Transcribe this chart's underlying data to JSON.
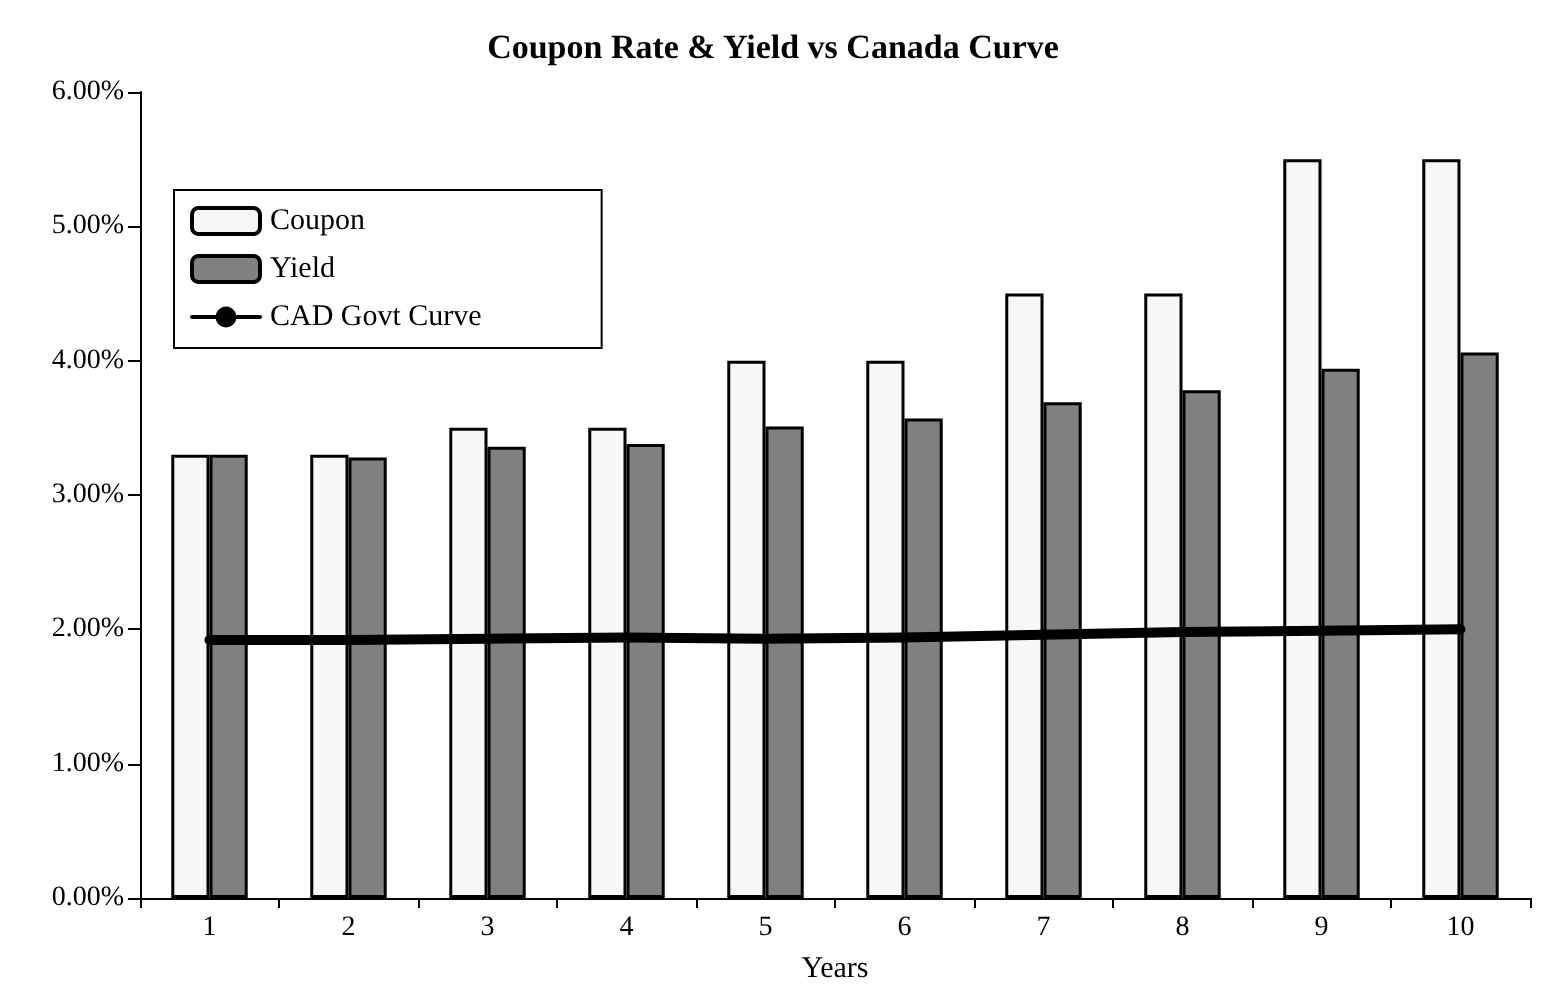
{
  "chart_data": {
    "type": "bar",
    "title": "Coupon Rate & Yield vs Canada Curve",
    "xlabel": "Years",
    "categories": [
      "1",
      "2",
      "3",
      "4",
      "5",
      "6",
      "7",
      "8",
      "9",
      "10"
    ],
    "series": [
      {
        "name": "Coupon",
        "color": "#f7f7f7",
        "values": [
          3.3,
          3.3,
          3.5,
          3.5,
          4.0,
          4.0,
          4.5,
          4.5,
          5.5,
          5.5
        ]
      },
      {
        "name": "Yield",
        "color": "#808080",
        "values": [
          3.3,
          3.28,
          3.36,
          3.38,
          3.51,
          3.57,
          3.69,
          3.78,
          3.94,
          4.06
        ]
      },
      {
        "name": "CAD Govt Curve",
        "type": "line",
        "color": "#000000",
        "values": [
          1.92,
          1.92,
          1.93,
          1.94,
          1.93,
          1.94,
          1.96,
          1.98,
          1.99,
          2.0
        ]
      }
    ],
    "ylim": [
      0,
      6
    ],
    "yticks": [
      {
        "value": 0,
        "label": "0.00%"
      },
      {
        "value": 1,
        "label": "1.00%"
      },
      {
        "value": 2,
        "label": "2.00%"
      },
      {
        "value": 3,
        "label": "3.00%"
      },
      {
        "value": 4,
        "label": "4.00%"
      },
      {
        "value": 5,
        "label": "5.00%"
      },
      {
        "value": 6,
        "label": "6.00%"
      }
    ],
    "grid": false,
    "legend": "top left",
    "marker": "none",
    "line_style": "solid"
  }
}
